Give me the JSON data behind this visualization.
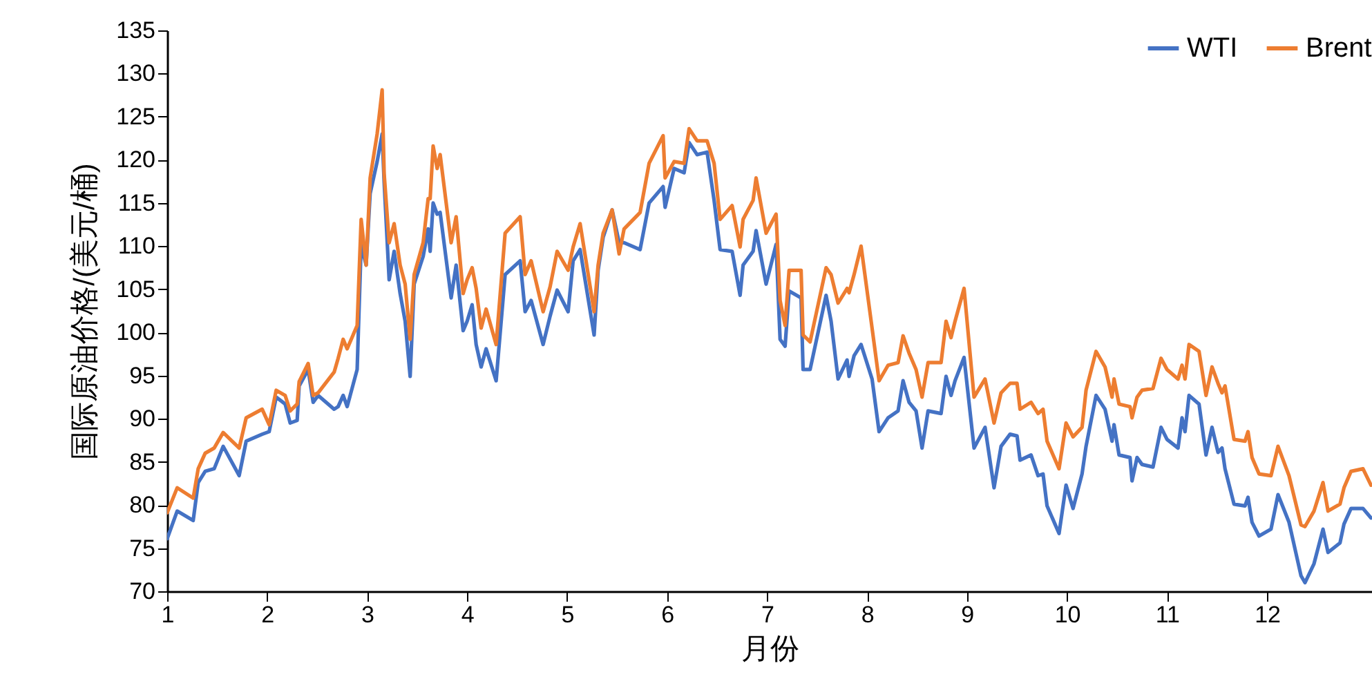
{
  "chart_data": {
    "type": "line",
    "xlabel": "月份",
    "ylabel": "国际原油价格/(美元/桶)",
    "x": [
      1.0,
      1.1,
      1.26,
      1.31,
      1.38,
      1.47,
      1.56,
      1.72,
      1.79,
      1.95,
      2.02,
      2.09,
      2.18,
      2.23,
      2.3,
      2.32,
      2.41,
      2.46,
      2.51,
      2.67,
      2.71,
      2.76,
      2.8,
      2.9,
      2.94,
      2.99,
      3.03,
      3.1,
      3.15,
      3.17,
      3.22,
      3.27,
      3.33,
      3.38,
      3.43,
      3.47,
      3.56,
      3.61,
      3.63,
      3.66,
      3.7,
      3.73,
      3.84,
      3.89,
      3.96,
      4.0,
      4.05,
      4.09,
      4.14,
      4.19,
      4.29,
      4.38,
      4.53,
      4.58,
      4.64,
      4.76,
      4.83,
      4.9,
      5.01,
      5.06,
      5.13,
      5.27,
      5.31,
      5.36,
      5.45,
      5.52,
      5.57,
      5.73,
      5.82,
      5.96,
      5.98,
      6.07,
      6.17,
      6.22,
      6.3,
      6.4,
      6.47,
      6.53,
      6.65,
      6.73,
      6.76,
      6.86,
      6.89,
      6.99,
      7.09,
      7.13,
      7.18,
      7.22,
      7.34,
      7.36,
      7.43,
      7.59,
      7.64,
      7.71,
      7.8,
      7.82,
      7.87,
      7.94,
      8.05,
      8.12,
      8.21,
      8.31,
      8.36,
      8.42,
      8.49,
      8.55,
      8.61,
      8.74,
      8.79,
      8.84,
      8.88,
      8.97,
      9.07,
      9.18,
      9.27,
      9.34,
      9.43,
      9.5,
      9.53,
      9.64,
      9.71,
      9.76,
      9.8,
      9.92,
      9.99,
      10.06,
      10.15,
      10.19,
      10.29,
      10.38,
      10.45,
      10.47,
      10.52,
      10.63,
      10.65,
      10.7,
      10.75,
      10.86,
      10.94,
      11.0,
      11.11,
      11.15,
      11.18,
      11.22,
      11.32,
      11.39,
      11.45,
      11.51,
      11.55,
      11.58,
      11.67,
      11.78,
      11.81,
      11.85,
      11.92,
      12.04,
      12.11,
      12.22,
      12.34,
      12.38,
      12.47,
      12.56,
      12.61,
      12.73,
      12.77,
      12.84,
      12.96,
      13.04
    ],
    "series": [
      {
        "name": "WTI",
        "color": "#4472c4",
        "values": [
          76.1,
          79.3,
          78.2,
          82.6,
          83.9,
          84.2,
          86.8,
          83.4,
          87.4,
          88.2,
          88.5,
          92.5,
          91.7,
          89.5,
          89.8,
          93.8,
          95.7,
          91.9,
          92.7,
          91.1,
          91.4,
          92.7,
          91.4,
          95.7,
          110.2,
          107.8,
          116.1,
          119.8,
          123.0,
          117.4,
          106.1,
          109.4,
          104.5,
          101.3,
          94.9,
          105.6,
          108.8,
          112.0,
          109.4,
          115.0,
          113.7,
          113.9,
          104.0,
          107.8,
          100.2,
          101.3,
          103.2,
          98.6,
          96.0,
          98.1,
          94.4,
          106.7,
          108.3,
          102.4,
          103.7,
          98.6,
          101.9,
          104.9,
          102.4,
          108.3,
          109.6,
          99.7,
          107.2,
          111.0,
          114.2,
          110.4,
          110.4,
          109.6,
          115.0,
          116.9,
          114.5,
          119.0,
          118.5,
          122.0,
          120.6,
          120.9,
          115.3,
          109.6,
          109.4,
          104.3,
          107.8,
          109.4,
          111.8,
          105.6,
          110.2,
          99.2,
          98.4,
          104.8,
          104.0,
          95.7,
          95.7,
          104.3,
          101.3,
          94.6,
          96.8,
          94.9,
          97.3,
          98.6,
          94.6,
          88.5,
          90.1,
          90.9,
          94.4,
          91.9,
          90.9,
          86.6,
          90.9,
          90.6,
          94.9,
          92.7,
          94.4,
          97.1,
          86.6,
          89.0,
          82.0,
          86.8,
          88.2,
          88.0,
          85.2,
          85.8,
          83.4,
          83.6,
          79.9,
          76.7,
          82.3,
          79.6,
          83.6,
          86.8,
          92.7,
          91.1,
          87.4,
          89.3,
          85.8,
          85.5,
          82.8,
          85.5,
          84.7,
          84.4,
          89.0,
          87.6,
          86.6,
          90.1,
          88.5,
          92.7,
          91.7,
          85.8,
          89.0,
          86.1,
          86.6,
          84.2,
          80.1,
          79.9,
          80.9,
          78.0,
          76.4,
          77.2,
          81.2,
          78.0,
          71.8,
          71.0,
          73.2,
          77.2,
          74.5,
          75.6,
          77.8,
          79.6,
          79.6,
          78.5
        ]
      },
      {
        "name": "Brent",
        "color": "#ed7d31",
        "values": [
          79.1,
          82.0,
          80.8,
          84.2,
          86.0,
          86.6,
          88.4,
          86.6,
          90.1,
          91.1,
          89.3,
          93.3,
          92.7,
          90.9,
          91.7,
          94.3,
          96.4,
          92.7,
          93.0,
          95.4,
          97.0,
          99.2,
          98.1,
          100.8,
          113.1,
          107.8,
          117.9,
          123.0,
          128.1,
          118.4,
          110.4,
          112.6,
          107.8,
          105.6,
          99.2,
          106.7,
          110.4,
          115.5,
          115.5,
          121.6,
          119.0,
          120.6,
          110.4,
          113.4,
          104.5,
          106.1,
          107.5,
          105.1,
          100.5,
          102.7,
          98.6,
          111.5,
          113.4,
          106.7,
          108.3,
          102.4,
          105.3,
          109.4,
          107.2,
          109.9,
          112.6,
          102.4,
          107.8,
          111.5,
          114.2,
          109.1,
          112.0,
          113.9,
          119.6,
          122.8,
          117.9,
          119.8,
          119.6,
          123.6,
          122.2,
          122.2,
          119.6,
          113.1,
          114.7,
          109.9,
          113.1,
          115.3,
          117.9,
          111.5,
          113.7,
          103.7,
          100.8,
          107.2,
          107.2,
          99.7,
          98.9,
          107.5,
          106.7,
          103.4,
          105.1,
          104.6,
          106.7,
          110.0,
          100.5,
          94.4,
          96.2,
          96.5,
          99.6,
          97.6,
          95.7,
          92.5,
          96.5,
          96.5,
          101.3,
          99.4,
          101.3,
          105.1,
          92.5,
          94.6,
          89.5,
          93.0,
          94.1,
          94.1,
          91.1,
          91.9,
          90.6,
          91.1,
          87.4,
          84.2,
          89.5,
          87.9,
          89.0,
          93.3,
          97.8,
          96.0,
          92.5,
          94.6,
          91.7,
          91.4,
          90.1,
          92.5,
          93.3,
          93.5,
          97.0,
          95.7,
          94.6,
          96.2,
          94.6,
          98.6,
          97.8,
          92.7,
          96.0,
          94.1,
          93.0,
          93.8,
          87.6,
          87.4,
          88.5,
          85.5,
          83.6,
          83.4,
          86.8,
          83.4,
          77.7,
          77.5,
          79.3,
          82.6,
          79.3,
          80.1,
          82.0,
          83.9,
          84.2,
          82.3
        ]
      }
    ],
    "xlim": [
      1,
      13.05
    ],
    "xticks": [
      1,
      2,
      3,
      4,
      5,
      6,
      7,
      8,
      9,
      10,
      11,
      12
    ],
    "ylim": [
      70,
      135
    ],
    "yticks": [
      70,
      75,
      80,
      85,
      90,
      95,
      100,
      105,
      110,
      115,
      120,
      125,
      130,
      135
    ],
    "legend": "top right",
    "marker": "none",
    "line_style": "solid"
  }
}
